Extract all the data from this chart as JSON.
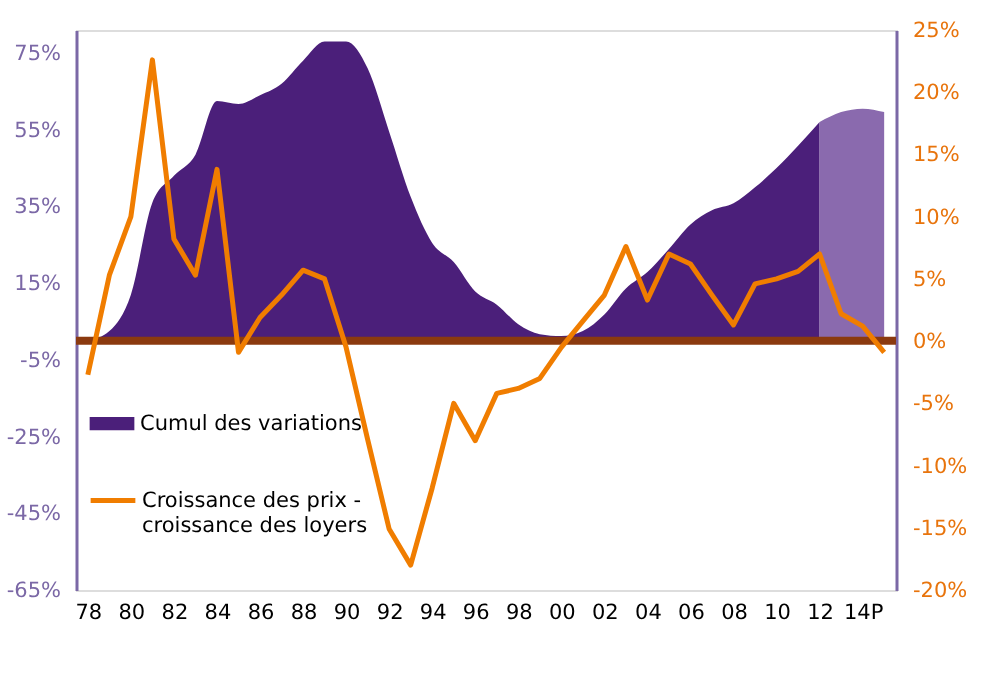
{
  "chart_data": {
    "type": "area",
    "categories": [
      "78",
      null,
      "80",
      null,
      "82",
      null,
      "84",
      null,
      "86",
      null,
      "88",
      null,
      "90",
      null,
      "92",
      null,
      "94",
      null,
      "96",
      null,
      "98",
      null,
      "00",
      null,
      "02",
      null,
      "04",
      null,
      "06",
      null,
      "08",
      null,
      "10",
      null,
      "12",
      null,
      "14P",
      null
    ],
    "series": [
      {
        "name": "Cumul des variations",
        "type": "area",
        "axis": "y",
        "color": "#4b1f7a",
        "values": [
          0,
          2.5,
          12,
          36,
          43,
          48.5,
          62.5,
          61.7,
          64,
          67,
          73,
          78,
          78,
          71,
          54.5,
          37.5,
          25.5,
          20.5,
          12.8,
          9.4,
          4.3,
          1.7,
          1.2,
          2.5,
          6.8,
          13.6,
          17.9,
          23.9,
          30.3,
          34,
          35.8,
          40,
          45,
          50.8,
          57,
          null,
          null,
          null
        ]
      },
      {
        "type": "area",
        "axis": "y",
        "color": "#8a6aae",
        "values": [
          null,
          null,
          null,
          null,
          null,
          null,
          null,
          null,
          null,
          null,
          null,
          null,
          null,
          null,
          null,
          null,
          null,
          null,
          null,
          null,
          null,
          null,
          null,
          null,
          null,
          null,
          null,
          null,
          null,
          null,
          null,
          null,
          null,
          null,
          57,
          59.6,
          60.5,
          59.6
        ]
      },
      {
        "name": "Croissance des prix -\ncroissance des loyers",
        "type": "line",
        "axis": "y2",
        "color": "#f07d00",
        "values": [
          -2.7,
          5.3,
          10,
          22.6,
          8.2,
          5.3,
          13.8,
          -0.9,
          1.9,
          3.7,
          5.7,
          5,
          -0.5,
          -7.9,
          -15.1,
          -18,
          -11.8,
          -5,
          -8,
          -4.2,
          -3.8,
          -3,
          -0.5,
          1.6,
          3.7,
          7.6,
          3.3,
          7,
          6.2,
          3.7,
          1.3,
          4.6,
          5,
          5.6,
          7,
          2.2,
          1.2,
          -0.9
        ]
      }
    ],
    "ylim": [
      -65,
      81
    ],
    "yticks": [
      {
        "value": -65,
        "label": "-65%"
      },
      {
        "value": -45,
        "label": "-45%"
      },
      {
        "value": -25,
        "label": "-25%"
      },
      {
        "value": -5,
        "label": "-5%"
      },
      {
        "value": 15,
        "label": "15%"
      },
      {
        "value": 35,
        "label": "35%"
      },
      {
        "value": 55,
        "label": "55%"
      },
      {
        "value": 75,
        "label": "75%"
      }
    ],
    "y2lim": [
      -20,
      25
    ],
    "y2ticks": [
      {
        "value": -20,
        "label": "-20%"
      },
      {
        "value": -15,
        "label": "-15%"
      },
      {
        "value": -10,
        "label": "-10%"
      },
      {
        "value": -5,
        "label": "-5%"
      },
      {
        "value": 0,
        "label": "0%"
      },
      {
        "value": 5,
        "label": "5%"
      },
      {
        "value": 10,
        "label": "10%"
      },
      {
        "value": 15,
        "label": "15%"
      },
      {
        "value": 20,
        "label": "20%"
      },
      {
        "value": 25,
        "label": "25%"
      }
    ],
    "ref_lines": [
      {
        "axis": "y",
        "value": 0,
        "color": "#8b3a0f"
      }
    ],
    "grid": false,
    "legend": "bottom left"
  }
}
